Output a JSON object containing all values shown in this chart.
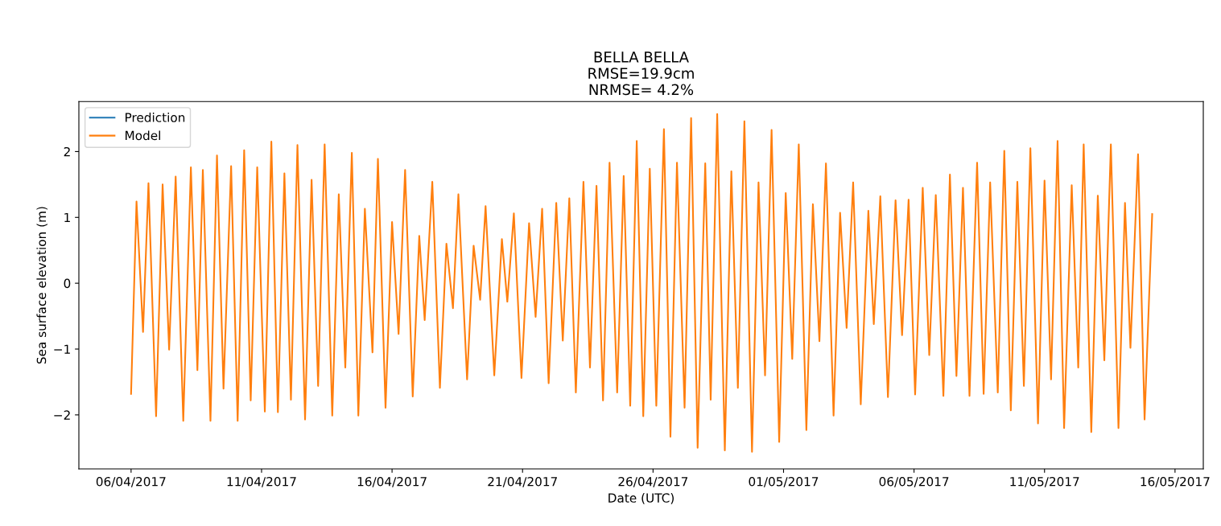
{
  "chart_data": {
    "type": "line",
    "title": "BELLA BELLA\nRMSE=19.9cm\nNRMSE= 4.2%",
    "xlabel": "Date (UTC)",
    "ylabel": "Sea surface elevation (m)",
    "x": [
      "2017-04-06T00:00",
      "2017-04-06T05:00",
      "2017-04-06T11:00",
      "2017-04-06T16:00",
      "2017-04-06T23:00",
      "2017-04-07T05:00",
      "2017-04-07T11:00",
      "2017-04-07T17:00",
      "2017-04-08T00:00",
      "2017-04-08T07:00",
      "2017-04-08T13:00",
      "2017-04-08T18:00",
      "2017-04-09T01:00",
      "2017-04-09T07:00",
      "2017-04-09T13:00",
      "2017-04-09T20:00",
      "2017-04-10T02:00",
      "2017-04-10T08:00",
      "2017-04-10T14:00",
      "2017-04-10T20:00",
      "2017-04-11T03:00",
      "2017-04-11T09:00",
      "2017-04-11T15:00",
      "2017-04-11T21:00",
      "2017-04-12T03:00",
      "2017-04-12T09:00",
      "2017-04-12T16:00",
      "2017-04-12T22:00",
      "2017-04-13T04:00",
      "2017-04-13T10:00",
      "2017-04-13T17:00",
      "2017-04-13T23:00",
      "2017-04-14T05:00",
      "2017-04-14T11:00",
      "2017-04-14T17:00",
      "2017-04-14T23:00",
      "2017-04-15T06:00",
      "2017-04-15T11:00",
      "2017-04-15T18:00",
      "2017-04-16T00:00",
      "2017-04-16T06:00",
      "2017-04-16T12:00",
      "2017-04-16T19:00",
      "2017-04-17T01:00",
      "2017-04-17T06:00",
      "2017-04-17T13:00",
      "2017-04-17T20:00",
      "2017-04-18T02:00",
      "2017-04-18T08:00",
      "2017-04-18T13:00",
      "2017-04-18T21:00",
      "2017-04-19T03:00",
      "2017-04-19T09:00",
      "2017-04-19T14:00",
      "2017-04-19T22:00",
      "2017-04-20T05:00",
      "2017-04-20T10:00",
      "2017-04-20T16:00",
      "2017-04-20T23:00",
      "2017-04-21T06:00",
      "2017-04-21T12:00",
      "2017-04-21T18:00",
      "2017-04-22T00:00",
      "2017-04-22T07:00",
      "2017-04-22T13:00",
      "2017-04-22T19:00",
      "2017-04-23T01:00",
      "2017-04-23T08:00",
      "2017-04-23T14:00",
      "2017-04-23T20:00",
      "2017-04-24T02:00",
      "2017-04-24T08:00",
      "2017-04-24T15:00",
      "2017-04-24T21:00",
      "2017-04-25T03:00",
      "2017-04-25T09:00",
      "2017-04-25T15:00",
      "2017-04-25T21:00",
      "2017-04-26T03:00",
      "2017-04-26T10:00",
      "2017-04-26T16:00",
      "2017-04-26T22:00",
      "2017-04-27T05:00",
      "2017-04-27T11:00",
      "2017-04-27T17:00",
      "2017-04-28T00:00",
      "2017-04-28T05:00",
      "2017-04-28T11:00",
      "2017-04-28T18:00",
      "2017-04-29T00:00",
      "2017-04-29T06:00",
      "2017-04-29T12:00",
      "2017-04-29T19:00",
      "2017-04-30T01:00",
      "2017-04-30T07:00",
      "2017-04-30T13:00",
      "2017-04-30T20:00",
      "2017-05-01T02:00",
      "2017-05-01T08:00",
      "2017-05-01T14:00",
      "2017-05-01T21:00",
      "2017-05-02T03:00",
      "2017-05-02T09:00",
      "2017-05-02T15:00",
      "2017-05-02T22:00",
      "2017-05-03T04:00",
      "2017-05-03T10:00",
      "2017-05-03T16:00",
      "2017-05-03T23:00",
      "2017-05-04T06:00",
      "2017-05-04T11:00",
      "2017-05-04T17:00",
      "2017-05-05T00:00",
      "2017-05-05T07:00",
      "2017-05-05T13:00",
      "2017-05-05T19:00",
      "2017-05-06T01:00",
      "2017-05-06T08:00",
      "2017-05-06T14:00",
      "2017-05-06T20:00",
      "2017-05-07T03:00",
      "2017-05-07T09:00",
      "2017-05-07T15:00",
      "2017-05-07T21:00",
      "2017-05-08T03:00",
      "2017-05-08T10:00",
      "2017-05-08T16:00",
      "2017-05-08T22:00",
      "2017-05-09T05:00",
      "2017-05-09T11:00",
      "2017-05-09T17:00",
      "2017-05-09T23:00",
      "2017-05-10T05:00",
      "2017-05-10T11:00",
      "2017-05-10T18:00",
      "2017-05-11T00:00",
      "2017-05-11T06:00",
      "2017-05-11T12:00",
      "2017-05-11T18:00",
      "2017-05-12T01:00",
      "2017-05-12T07:00",
      "2017-05-12T12:00",
      "2017-05-12T19:00",
      "2017-05-13T01:00",
      "2017-05-13T07:00",
      "2017-05-13T13:00",
      "2017-05-13T20:00",
      "2017-05-14T02:00",
      "2017-05-14T07:00",
      "2017-05-14T14:00",
      "2017-05-14T20:00",
      "2017-05-15T03:00"
    ],
    "series": [
      {
        "name": "Prediction",
        "color": "#1f77b4",
        "values": [
          null,
          null,
          null,
          null,
          null,
          null,
          null,
          null,
          null,
          null,
          null,
          null,
          null,
          null,
          null,
          null,
          null,
          null,
          null,
          null,
          null,
          null,
          null,
          null,
          null,
          null,
          null,
          null,
          null,
          null,
          null,
          null,
          null,
          null,
          null,
          null,
          null,
          null,
          null,
          null,
          null,
          null,
          null,
          null,
          null,
          null,
          null,
          null,
          null,
          null,
          null,
          null,
          null,
          null,
          null,
          null,
          null,
          null,
          null,
          null,
          null,
          null,
          null,
          null,
          null,
          null,
          null,
          null,
          null,
          null,
          null,
          null,
          null,
          null,
          null,
          null,
          null,
          null,
          null,
          null,
          null,
          null,
          null,
          null,
          null,
          null,
          null,
          null,
          null,
          null,
          null,
          null,
          null,
          null,
          null,
          null,
          null,
          null,
          null,
          null,
          null,
          null,
          null,
          null,
          null,
          null,
          null,
          null,
          null,
          null,
          null,
          null,
          null,
          null,
          null,
          null,
          null,
          null,
          null,
          null,
          null,
          null,
          null,
          null,
          null,
          null,
          null,
          null,
          null,
          null,
          null,
          null,
          null,
          null,
          null,
          null,
          null,
          null,
          null,
          null,
          null,
          null,
          null,
          null,
          null,
          null,
          null,
          null,
          null,
          null,
          null,
          null
        ]
      },
      {
        "name": "Model",
        "color": "#ff7f0e",
        "values": [
          -1.68,
          1.24,
          -0.74,
          1.52,
          -2.02,
          1.5,
          -1.01,
          1.62,
          -2.09,
          1.76,
          -1.32,
          1.72,
          -2.09,
          1.94,
          -1.6,
          1.78,
          -2.09,
          2.02,
          -1.78,
          1.76,
          -1.95,
          2.15,
          -1.96,
          1.67,
          -1.77,
          2.1,
          -2.07,
          1.57,
          -1.56,
          2.11,
          -2.01,
          1.35,
          -1.28,
          1.98,
          -2.01,
          1.13,
          -1.05,
          1.89,
          -1.89,
          0.93,
          -0.77,
          1.72,
          -1.72,
          0.72,
          -0.56,
          1.54,
          -1.59,
          0.6,
          -0.38,
          1.35,
          -1.46,
          0.57,
          -0.25,
          1.17,
          -1.4,
          0.67,
          -0.28,
          1.06,
          -1.44,
          0.91,
          -0.51,
          1.13,
          -1.52,
          1.22,
          -0.87,
          1.29,
          -1.66,
          1.54,
          -1.28,
          1.48,
          -1.78,
          1.83,
          -1.66,
          1.63,
          -1.86,
          2.16,
          -2.02,
          1.74,
          -1.86,
          2.34,
          -2.33,
          1.83,
          -1.89,
          2.51,
          -2.5,
          1.82,
          -1.77,
          2.57,
          -2.54,
          1.7,
          -1.59,
          2.46,
          -2.56,
          1.53,
          -1.4,
          2.33,
          -2.41,
          1.37,
          -1.15,
          2.11,
          -2.23,
          1.2,
          -0.88,
          1.82,
          -2.01,
          1.07,
          -0.68,
          1.53,
          -1.84,
          1.1,
          -0.62,
          1.32,
          -1.73,
          1.26,
          -0.79,
          1.27,
          -1.69,
          1.45,
          -1.09,
          1.34,
          -1.71,
          1.65,
          -1.41,
          1.45,
          -1.71,
          1.83,
          -1.68,
          1.53,
          -1.66,
          2.01,
          -1.93,
          1.54,
          -1.56,
          2.05,
          -2.13,
          1.56,
          -1.46,
          2.16,
          -2.2,
          1.49,
          -1.28,
          2.11,
          -2.26,
          1.33,
          -1.17,
          2.11,
          -2.2,
          1.22,
          -0.98,
          1.96,
          -2.07,
          1.05
        ]
      }
    ],
    "xlim": [
      "2017-04-04T00:00",
      "2017-05-17T02:00"
    ],
    "xticks": [
      {
        "value": "2017-04-06",
        "label": "06/04/2017"
      },
      {
        "value": "2017-04-11",
        "label": "11/04/2017"
      },
      {
        "value": "2017-04-16",
        "label": "16/04/2017"
      },
      {
        "value": "2017-04-21",
        "label": "21/04/2017"
      },
      {
        "value": "2017-04-26",
        "label": "26/04/2017"
      },
      {
        "value": "2017-05-01",
        "label": "01/05/2017"
      },
      {
        "value": "2017-05-06",
        "label": "06/05/2017"
      },
      {
        "value": "2017-05-11",
        "label": "11/05/2017"
      },
      {
        "value": "2017-05-16",
        "label": "16/05/2017"
      }
    ],
    "ylim": [
      -2.82,
      2.76
    ],
    "yticks": [
      -2,
      -1,
      0,
      1,
      2
    ],
    "legend": "top left",
    "grid": false,
    "marker": "none",
    "line_style": "solid"
  }
}
